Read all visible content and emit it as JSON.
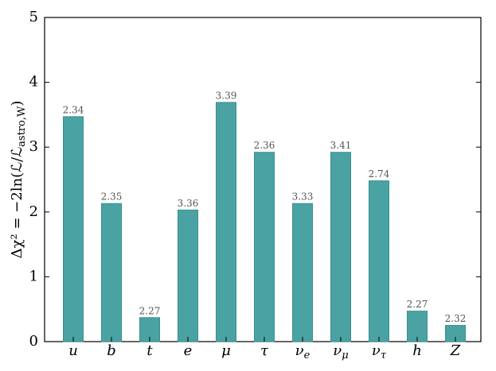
{
  "chart_data": {
    "type": "bar",
    "y_label": "Δχ² = −2ln(ℒ/ℒastro,W)",
    "categories": [
      "u",
      "b",
      "t",
      "e",
      "μ",
      "τ",
      "νe",
      "νμ",
      "ντ",
      "h",
      "Z"
    ],
    "values": [
      3.47,
      2.13,
      0.37,
      2.03,
      3.69,
      2.92,
      2.13,
      2.92,
      2.48,
      0.47,
      0.25
    ],
    "bar_annotations": [
      "2.34",
      "2.35",
      "2.27",
      "3.36",
      "3.39",
      "2.36",
      "3.33",
      "3.41",
      "2.74",
      "2.27",
      "2.32"
    ],
    "color": "#4aa3a2",
    "ylim": [
      0,
      5
    ],
    "yticks": [
      0,
      1,
      2,
      3,
      4,
      5
    ]
  }
}
